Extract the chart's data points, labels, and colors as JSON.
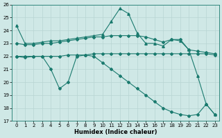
{
  "x": [
    0,
    1,
    2,
    3,
    4,
    5,
    6,
    7,
    8,
    9,
    10,
    11,
    12,
    13,
    14,
    15,
    16,
    17,
    18,
    19,
    20,
    21,
    22,
    23
  ],
  "line_top": [
    24.4,
    23.0,
    23.0,
    23.1,
    23.2,
    23.2,
    23.3,
    23.4,
    23.5,
    23.6,
    23.7,
    24.7,
    25.7,
    25.3,
    23.8,
    23.0,
    23.0,
    22.8,
    23.3,
    23.2,
    22.5,
    20.5,
    18.3,
    17.5
  ],
  "line_mid_upper": [
    23.0,
    22.9,
    22.9,
    23.0,
    23.0,
    23.1,
    23.2,
    23.3,
    23.4,
    23.5,
    23.5,
    23.6,
    23.6,
    23.6,
    23.6,
    23.5,
    23.3,
    23.1,
    23.3,
    23.3,
    22.5,
    22.4,
    22.3,
    22.2
  ],
  "line_mid_lower": [
    22.0,
    21.9,
    22.0,
    22.0,
    22.0,
    22.0,
    22.1,
    22.1,
    22.1,
    22.2,
    22.2,
    22.2,
    22.2,
    22.2,
    22.2,
    22.2,
    22.2,
    22.2,
    22.2,
    22.2,
    22.2,
    22.2,
    22.2,
    22.1
  ],
  "line_bottom": [
    22.0,
    22.0,
    22.0,
    22.0,
    21.0,
    19.5,
    20.0,
    22.0,
    22.1,
    22.0,
    21.5,
    21.0,
    20.5,
    20.0,
    19.5,
    19.0,
    18.5,
    18.0,
    17.7,
    17.5,
    17.4,
    17.5,
    18.3,
    17.5
  ],
  "bg_color": "#cfe8e6",
  "grid_color": "#b8d4d2",
  "line_color": "#1a7a6e",
  "xlabel": "Humidex (Indice chaleur)",
  "ylim": [
    17,
    26
  ],
  "xlim_min": -0.5,
  "xlim_max": 23.5,
  "yticks": [
    17,
    18,
    19,
    20,
    21,
    22,
    23,
    24,
    25,
    26
  ],
  "xticks": [
    0,
    1,
    2,
    3,
    4,
    5,
    6,
    7,
    8,
    9,
    10,
    11,
    12,
    13,
    14,
    15,
    16,
    17,
    18,
    19,
    20,
    21,
    22,
    23
  ]
}
